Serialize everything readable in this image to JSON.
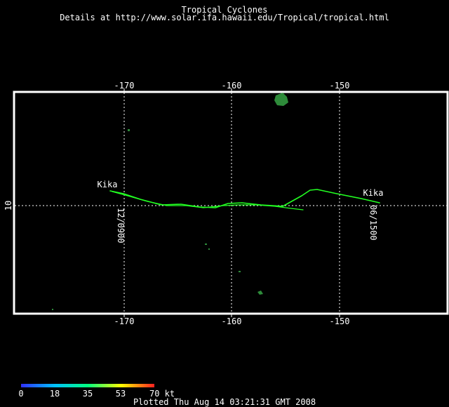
{
  "header": {
    "title": "Tropical Cyclones",
    "details": "Details at http://www.solar.ifa.hawaii.edu/Tropical/tropical.html"
  },
  "map": {
    "lon_range": [
      -180,
      -139
    ],
    "lat_range": [
      0,
      20
    ],
    "lon_ticks": [
      -170,
      -160,
      -150
    ],
    "lat_ticks": [
      10
    ],
    "tick_labels": {
      "lon_m170": "-170",
      "lon_m160": "-160",
      "lon_m150": "-150",
      "lat_10": "10"
    },
    "grid_color": "#ffffff",
    "land_color": "#2e8b3a"
  },
  "storm": {
    "name": "Kika",
    "end_label": "Kika",
    "start_time": "12/0900",
    "end_time": "06/1500",
    "track_color": "#22ff22"
  },
  "legend": {
    "labels": [
      "0",
      "18",
      "35",
      "53",
      "70 kt"
    ],
    "colors": [
      "#3030ff",
      "#00c0ff",
      "#00ff80",
      "#ffff00",
      "#ff2020"
    ]
  },
  "footer": {
    "plotted": "Plotted Thu Aug 14 03:21:31 GMT 2008"
  }
}
